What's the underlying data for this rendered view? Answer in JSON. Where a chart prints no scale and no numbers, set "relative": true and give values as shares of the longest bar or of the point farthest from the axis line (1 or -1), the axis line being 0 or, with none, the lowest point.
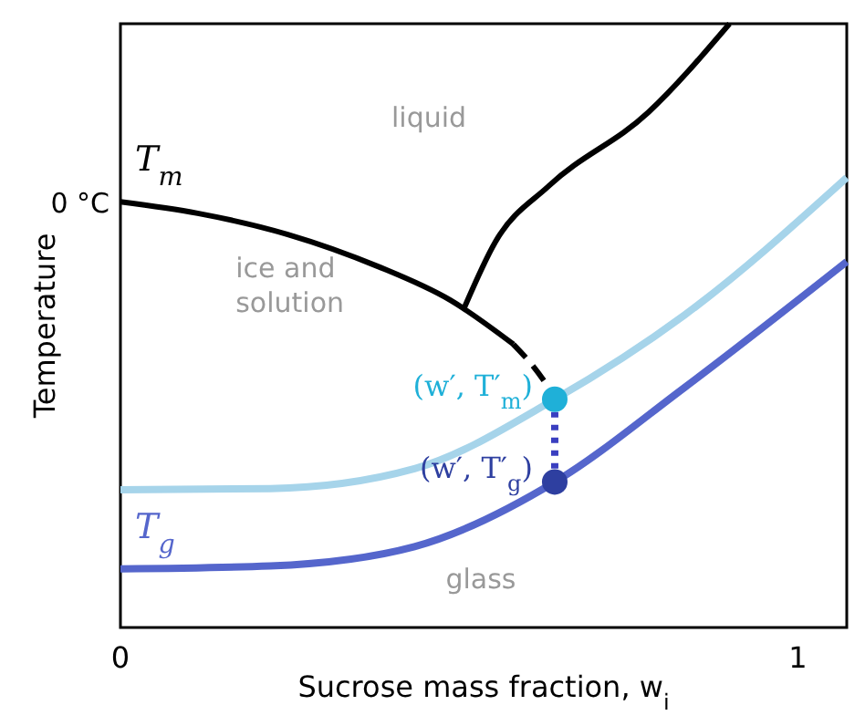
{
  "chart_data": {
    "type": "line",
    "relative": true,
    "xlabel": "Sucrose mass fraction, w$_{i}$",
    "ylabel": "Temperature",
    "xlim": [
      0,
      1.072
    ],
    "xticks": [
      0,
      1
    ],
    "grid": false,
    "series": [
      {
        "name": "T$_{m}$",
        "color": "#000000",
        "line_style": "solid",
        "x": [
          0,
          0.114,
          0.247,
          0.38,
          0.487,
          0.58
        ],
        "values": [
          0.705,
          0.686,
          0.651,
          0.598,
          0.542,
          0.469
        ]
      },
      {
        "color": "#000000",
        "line_style": "dashed",
        "x": [
          0.58,
          0.606,
          0.641
        ],
        "values": [
          0.469,
          0.437,
          0.383
        ]
      },
      {
        "color": "#000000",
        "line_style": "solid",
        "x": [
          0.508,
          0.553,
          0.633,
          0.779,
          0.899
        ],
        "values": [
          0.531,
          0.638,
          0.732,
          0.853,
          1.0
        ]
      },
      {
        "color": "#a6d4ea",
        "line_style": "solid",
        "x": [
          0,
          0.221,
          0.434,
          0.641,
          0.832,
          1.072
        ],
        "values": [
          0.228,
          0.23,
          0.263,
          0.378,
          0.517,
          0.745
        ]
      },
      {
        "name": "T$_{g}$",
        "color": "#5566cc",
        "line_style": "solid",
        "x": [
          0,
          0.221,
          0.434,
          0.641,
          0.832,
          1.072
        ],
        "values": [
          0.097,
          0.102,
          0.134,
          0.241,
          0.397,
          0.606
        ]
      },
      {
        "color": "#3a3fc0",
        "line_style": "dotted",
        "x": [
          0.641,
          0.641
        ],
        "values": [
          0.378,
          0.241
        ]
      },
      {
        "type": "scatter",
        "name": "(w′, T′$_{m}$)",
        "color": "#1fb0d8",
        "marker": "circle",
        "x": [
          0.641
        ],
        "values": [
          0.378
        ]
      },
      {
        "type": "scatter",
        "name": "(w′, T′$_{g}$)",
        "color": "#2e3fa0",
        "marker": "circle",
        "x": [
          0.641
        ],
        "values": [
          0.241
        ]
      }
    ],
    "annotations": [
      {
        "text": "0 °C",
        "x": 0,
        "y": 0.705
      },
      "liquid",
      "ice and solution",
      "glass"
    ]
  }
}
